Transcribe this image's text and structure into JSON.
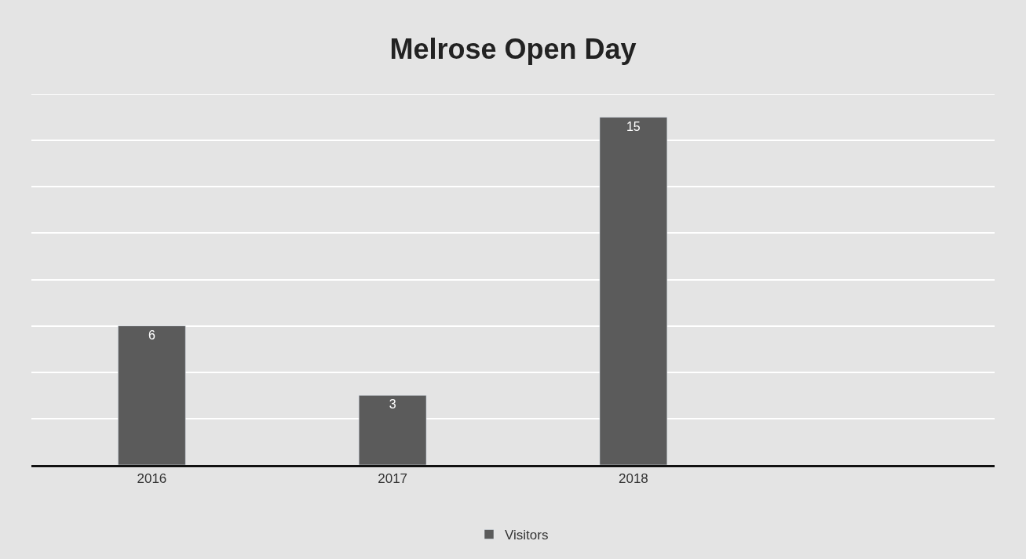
{
  "chart_data": {
    "type": "bar",
    "title": "Melrose Open Day",
    "categories": [
      "2016",
      "2017",
      "2018",
      null
    ],
    "series": [
      {
        "name": "Visitors",
        "color": "#5b5b5b",
        "values": [
          6,
          3,
          15,
          null
        ]
      }
    ],
    "ylim": [
      0,
      16
    ],
    "yticks": [
      {
        "value": 0,
        "label": null
      },
      {
        "value": 2,
        "label": null
      },
      {
        "value": 4,
        "label": null
      },
      {
        "value": 6,
        "label": null
      },
      {
        "value": 8,
        "label": null
      },
      {
        "value": 10,
        "label": null
      },
      {
        "value": 12,
        "label": null
      },
      {
        "value": 14,
        "label": null
      },
      {
        "value": 16,
        "label": null
      }
    ],
    "tick_labels": "x",
    "grid": "y",
    "legend": "bottom",
    "data_labels": true
  }
}
